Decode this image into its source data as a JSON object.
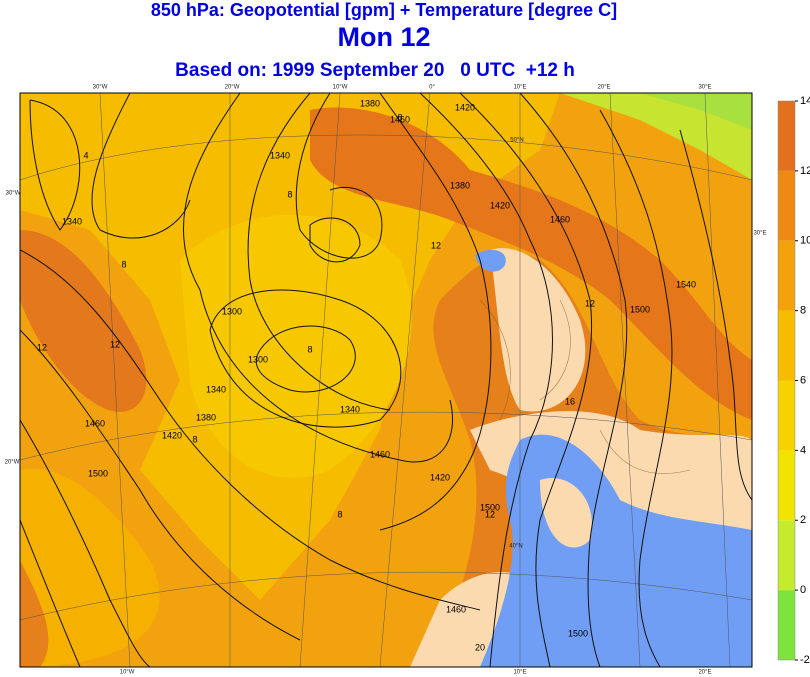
{
  "header": {
    "title": "850 hPa: Geopotential [gpm] + Temperature [degree C]",
    "subtitle": "Mon 12",
    "based_on": "Based on: 1999 September 20   0 UTC  +12 h"
  },
  "colorbar": {
    "range": [
      -2,
      14
    ],
    "ticks": [
      14,
      12,
      10,
      8,
      6,
      4,
      2,
      0,
      -2
    ],
    "colors": [
      "#7ee23a",
      "#c6ea2c",
      "#f0e400",
      "#f6d200",
      "#f6bc00",
      "#f3a20c",
      "#ee8a14",
      "#e2701c"
    ]
  },
  "map": {
    "contour_labels": [
      "1380",
      "1420",
      "1460",
      "1340",
      "1340",
      "4",
      "8",
      "8",
      "1300",
      "1340",
      "1380",
      "1420",
      "1460",
      "1500",
      "12",
      "12",
      "8",
      "1380",
      "1420",
      "1460",
      "1500",
      "1540",
      "16",
      "12",
      "20",
      "1500",
      "1460",
      "12",
      "8",
      "1420",
      "1460",
      "1500",
      "1300",
      "1340",
      "8",
      "8",
      "12"
    ],
    "grid_labels": [
      "30°W",
      "20°W",
      "10°W",
      "0°",
      "10°E",
      "20°E",
      "30°E",
      "30°W",
      "20°W",
      "30°E",
      "10°W",
      "10°E",
      "20°E",
      "50°N",
      "40°N"
    ]
  }
}
